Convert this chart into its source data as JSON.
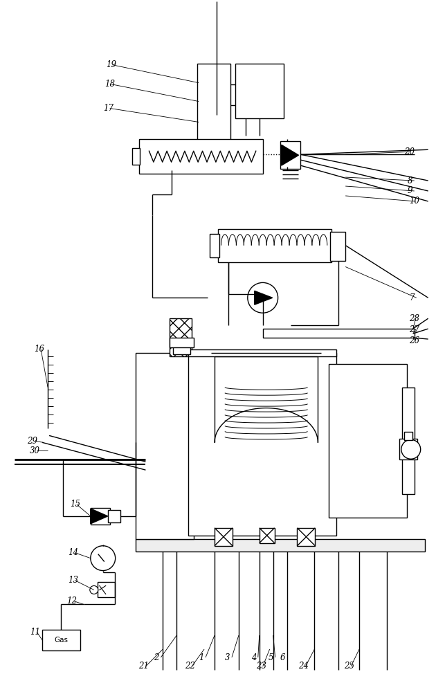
{
  "bg_color": "#ffffff",
  "line_color": "#000000",
  "lw": 1.0
}
